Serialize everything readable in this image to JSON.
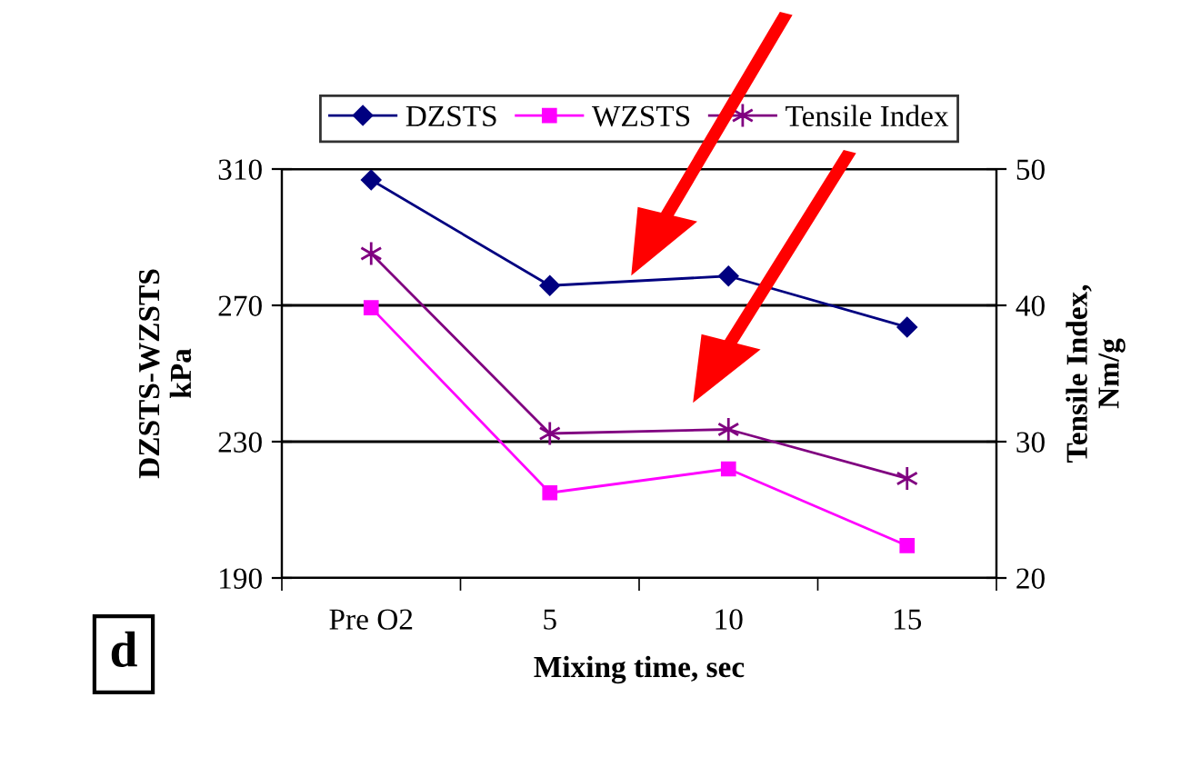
{
  "chart_data": {
    "type": "line",
    "categories": [
      "Pre O2",
      "5",
      "10",
      "15"
    ],
    "series": [
      {
        "name": "DZSTS",
        "color": "#000080",
        "marker": "diamond",
        "values": [
          306.8,
          275.8,
          278.6,
          263.6
        ]
      },
      {
        "name": "WZSTS",
        "color": "#ff00ff",
        "marker": "square",
        "values": [
          269.3,
          215,
          222,
          199.5
        ]
      },
      {
        "name": "Tensile Index",
        "color": "#800080",
        "marker": "cross",
        "axis": "y2",
        "values": [
          43.8,
          30.6,
          30.9,
          27.3
        ]
      }
    ],
    "xlabel": "Mixing time, sec",
    "ylabel": "DZSTS-WZSTS\nkPa",
    "y2label": "Tensile Index,\nNm/g",
    "ylim": [
      190,
      310
    ],
    "yticks": [
      190,
      230,
      270,
      310
    ],
    "y2lim": [
      20,
      50
    ],
    "y2ticks": [
      20,
      30,
      40,
      50
    ],
    "grid": "y",
    "legend": "top",
    "annotations": [
      "d"
    ]
  }
}
